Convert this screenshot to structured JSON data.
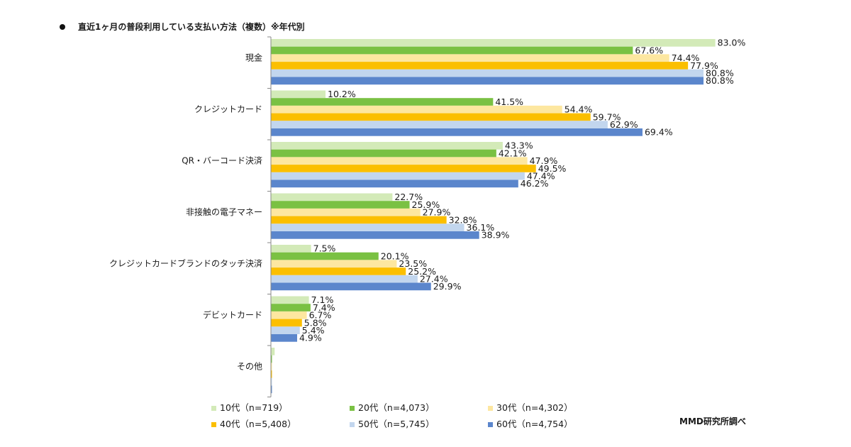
{
  "header": {
    "title": "直近1ヶ月の普段利用している支払い方法（複数）※年代別"
  },
  "footer": {
    "credit": "MMD研究所調べ"
  },
  "chart_data": {
    "type": "bar",
    "orientation": "horizontal",
    "title": "直近1ヶ月の普段利用している支払い方法（複数）※年代別",
    "xlabel": "",
    "ylabel": "",
    "xlim": [
      0,
      100
    ],
    "grid": false,
    "legend_position": "bottom",
    "value_suffix": "%",
    "categories": [
      "現金",
      "クレジットカード",
      "QR・バーコード決済",
      "非接触の電子マネー",
      "クレジットカードブランドのタッチ決済",
      "デビットカード",
      "その他"
    ],
    "series": [
      {
        "name": "10代（n=719）",
        "color": "#d3eab8",
        "values": [
          83.0,
          10.2,
          43.3,
          22.7,
          7.5,
          7.1,
          0.7
        ],
        "labels": [
          "83.0%",
          "10.2%",
          "43.3%",
          "22.7%",
          "7.5%",
          "7.1%",
          ""
        ]
      },
      {
        "name": "20代（n=4,073）",
        "color": "#7ac143",
        "values": [
          67.6,
          41.5,
          42.1,
          25.9,
          20.1,
          7.4,
          0.2
        ],
        "labels": [
          "67.6%",
          "41.5%",
          "42.1%",
          "25.9%",
          "20.1%",
          "7.4%",
          ""
        ]
      },
      {
        "name": "30代（n=4,302）",
        "color": "#fde7a0",
        "values": [
          74.4,
          54.4,
          47.9,
          27.9,
          23.5,
          6.7,
          0.2
        ],
        "labels": [
          "74.4%",
          "54.4%",
          "47.9%",
          "27.9%",
          "23.5%",
          "6.7%",
          ""
        ]
      },
      {
        "name": "40代（n=5,408）",
        "color": "#fbbf00",
        "values": [
          77.9,
          59.7,
          49.5,
          32.8,
          25.2,
          5.8,
          0.2
        ],
        "labels": [
          "77.9%",
          "59.7%",
          "49.5%",
          "32.8%",
          "25.2%",
          "5.8%",
          ""
        ]
      },
      {
        "name": "50代（n=5,745）",
        "color": "#c2d6ee",
        "values": [
          80.8,
          62.9,
          47.4,
          36.1,
          27.4,
          5.4,
          0.2
        ],
        "labels": [
          "80.8%",
          "62.9%",
          "47.4%",
          "36.1%",
          "27.4%",
          "5.4%",
          ""
        ]
      },
      {
        "name": "60代（n=4,754）",
        "color": "#5b86cc",
        "values": [
          80.8,
          69.4,
          46.2,
          38.9,
          29.9,
          4.9,
          0.2
        ],
        "labels": [
          "80.8%",
          "69.4%",
          "46.2%",
          "38.9%",
          "29.9%",
          "4.9%",
          ""
        ]
      }
    ]
  }
}
